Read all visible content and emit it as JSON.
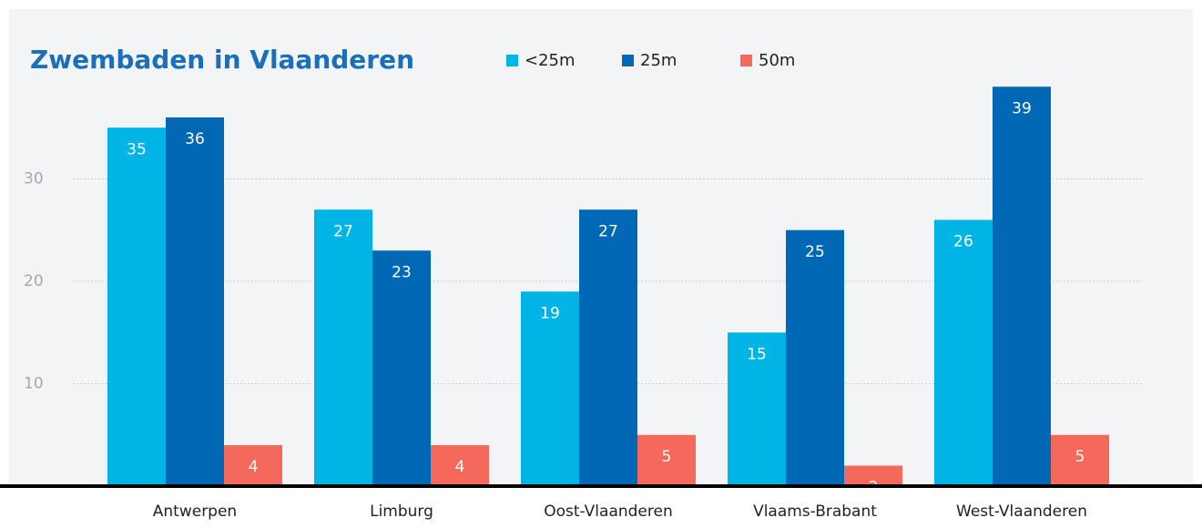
{
  "chart_data": {
    "type": "bar",
    "title": "Zwembaden in Vlaanderen",
    "categories": [
      "Antwerpen",
      "Limburg",
      "Oost-Vlaanderen",
      "Vlaams-Brabant",
      "West-Vlaanderen"
    ],
    "series": [
      {
        "name": "<25m",
        "color": "#00b4e6",
        "values": [
          35,
          27,
          19,
          15,
          26
        ]
      },
      {
        "name": "25m",
        "color": "#0068b4",
        "values": [
          36,
          23,
          27,
          25,
          39
        ]
      },
      {
        "name": "50m",
        "color": "#f5695d",
        "values": [
          4,
          4,
          5,
          2,
          5
        ]
      }
    ],
    "ylim": [
      0,
      40
    ],
    "yticks": [
      10,
      20,
      30
    ],
    "grid": true
  }
}
